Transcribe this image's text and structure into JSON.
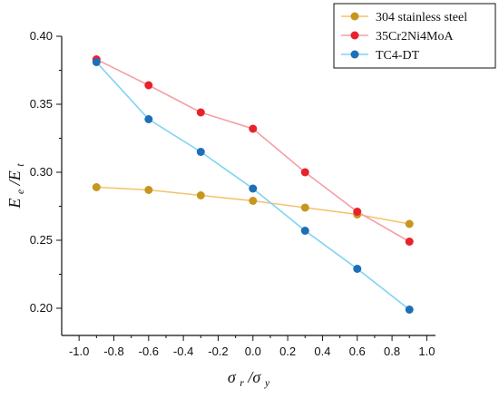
{
  "chart_data": {
    "type": "line",
    "title": "",
    "x_axis": {
      "title_main": "σ",
      "title_sub1": "r",
      "title_sep": "/σ",
      "title_sub2": "y",
      "range": [
        -1.1,
        1.05
      ],
      "ticks": [
        -1.0,
        -0.8,
        -0.6,
        -0.4,
        -0.2,
        0.0,
        0.2,
        0.4,
        0.6,
        0.8,
        1.0
      ],
      "tick_labels": [
        "-1.0",
        "-0.8",
        "-0.6",
        "-0.4",
        "-0.2",
        "0.0",
        "0.2",
        "0.4",
        "0.6",
        "0.8",
        "1.0"
      ]
    },
    "y_axis": {
      "title_main": "E",
      "title_sub1": "e",
      "title_sep": "/E",
      "title_sub2": "t",
      "range": [
        0.18,
        0.4
      ],
      "ticks": [
        0.2,
        0.25,
        0.3,
        0.35,
        0.4
      ],
      "tick_labels": [
        "0.20",
        "0.25",
        "0.30",
        "0.35",
        "0.40"
      ]
    },
    "grid": false,
    "legend_position": "top-right",
    "x": [
      -0.9,
      -0.6,
      -0.3,
      0.0,
      0.3,
      0.6,
      0.9
    ],
    "series": [
      {
        "name": "304 stainless steel",
        "line_color": "#f2c46d",
        "marker_color": "#c8961e",
        "values": [
          0.289,
          0.287,
          0.283,
          0.279,
          0.274,
          0.269,
          0.262
        ]
      },
      {
        "name": "35Cr2Ni4MoA",
        "line_color": "#f4a0a4",
        "marker_color": "#e8222c",
        "values": [
          0.383,
          0.364,
          0.344,
          0.332,
          0.3,
          0.271,
          0.249
        ]
      },
      {
        "name": "TC4-DT",
        "line_color": "#7fd3f2",
        "marker_color": "#1e6fb5",
        "values": [
          0.381,
          0.339,
          0.315,
          0.288,
          0.257,
          0.229,
          0.199
        ]
      }
    ]
  }
}
